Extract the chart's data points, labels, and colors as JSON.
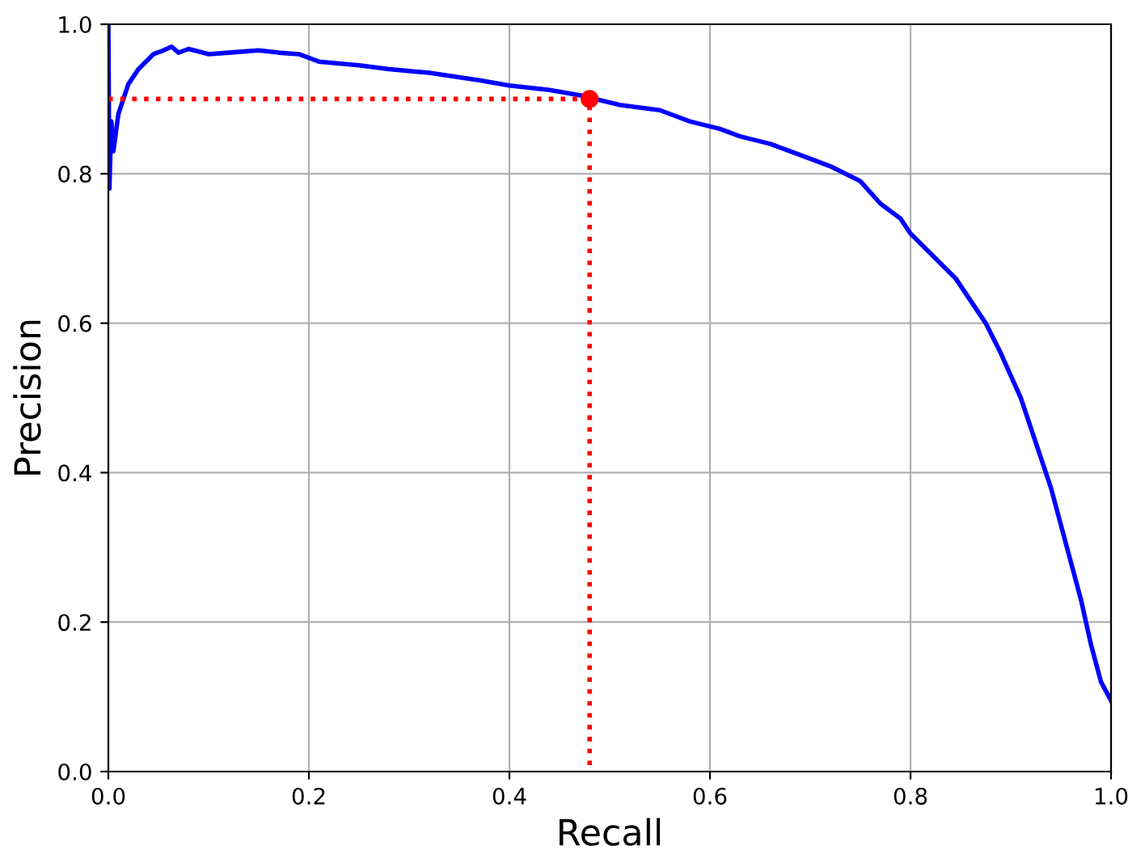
{
  "chart_data": {
    "type": "line",
    "xlabel": "Recall",
    "ylabel": "Precision",
    "xlim": [
      0,
      1
    ],
    "ylim": [
      0,
      1
    ],
    "xticks": [
      {
        "value": 0,
        "label": "0.0"
      },
      {
        "value": 0.2,
        "label": "0.2"
      },
      {
        "value": 0.4,
        "label": "0.4"
      },
      {
        "value": 0.6,
        "label": "0.6"
      },
      {
        "value": 0.8,
        "label": "0.8"
      },
      {
        "value": 1,
        "label": "1.0"
      }
    ],
    "yticks": [
      {
        "value": 0,
        "label": "0.0"
      },
      {
        "value": 0.2,
        "label": "0.2"
      },
      {
        "value": 0.4,
        "label": "0.4"
      },
      {
        "value": 0.6,
        "label": "0.6"
      },
      {
        "value": 0.8,
        "label": "0.8"
      },
      {
        "value": 1,
        "label": "1.0"
      }
    ],
    "grid": true,
    "series": [
      {
        "color": "#0000ff",
        "line_style": "solid",
        "marker": "none",
        "x": [
          0,
          0.001,
          0.003,
          0.005,
          0.01,
          0.02,
          0.03,
          0.045,
          0.055,
          0.063,
          0.07,
          0.08,
          0.1,
          0.12,
          0.15,
          0.17,
          0.19,
          0.21,
          0.25,
          0.28,
          0.32,
          0.37,
          0.4,
          0.44,
          0.47,
          0.51,
          0.55,
          0.58,
          0.61,
          0.63,
          0.66,
          0.69,
          0.72,
          0.75,
          0.77,
          0.79,
          0.8,
          0.815,
          0.83,
          0.845,
          0.86,
          0.875,
          0.89,
          0.9,
          0.91,
          0.92,
          0.93,
          0.94,
          0.95,
          0.96,
          0.97,
          0.98,
          0.99,
          1.0
        ],
        "values": [
          1.0,
          0.78,
          0.87,
          0.83,
          0.88,
          0.92,
          0.94,
          0.96,
          0.965,
          0.97,
          0.962,
          0.967,
          0.96,
          0.962,
          0.965,
          0.962,
          0.96,
          0.95,
          0.945,
          0.94,
          0.935,
          0.925,
          0.918,
          0.912,
          0.905,
          0.892,
          0.885,
          0.87,
          0.86,
          0.85,
          0.84,
          0.825,
          0.81,
          0.79,
          0.76,
          0.74,
          0.72,
          0.7,
          0.68,
          0.66,
          0.63,
          0.6,
          0.56,
          0.53,
          0.5,
          0.46,
          0.42,
          0.38,
          0.33,
          0.28,
          0.23,
          0.17,
          0.12,
          0.095
        ]
      },
      {
        "color": "#ff0000",
        "line_style": "dotted",
        "marker": "none",
        "x": [
          0,
          0.48,
          0.48
        ],
        "values": [
          0.9,
          0.9,
          0
        ]
      },
      {
        "type": "scatter",
        "color": "#ff0000",
        "marker": "circle",
        "x": [
          0.48
        ],
        "values": [
          0.9
        ]
      }
    ]
  }
}
